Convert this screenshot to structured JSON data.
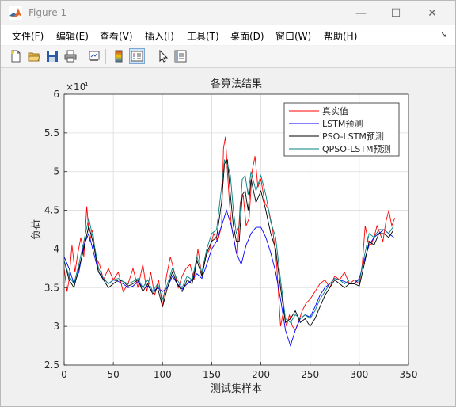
{
  "window": {
    "title": "Figure 1"
  },
  "window_controls": {
    "minimize": "—",
    "maximize": "☐",
    "close": "✕"
  },
  "menu": [
    "文件(F)",
    "编辑(E)",
    "查看(V)",
    "插入(I)",
    "工具(T)",
    "桌面(D)",
    "窗口(W)",
    "帮助(H)"
  ],
  "toolbar": {
    "icons": [
      "new-figure-icon",
      "open-file-icon",
      "save-icon",
      "print-icon",
      "link-icon",
      "colorbar-icon",
      "legend-icon",
      "pointer-icon",
      "property-editor-icon"
    ]
  },
  "colors": {
    "true": "#ff0000",
    "lstm": "#0000ff",
    "pso": "#000000",
    "qpso": "#008080",
    "grid": "#dcdcdc"
  },
  "chart_data": {
    "type": "line",
    "title": "各算法结果",
    "xlabel": "测试集样本",
    "ylabel": "负荷",
    "y_exponent_label": "×10",
    "y_exponent_power": "4",
    "xlim": [
      0,
      350
    ],
    "ylim": [
      2.5,
      6
    ],
    "xticks": [
      0,
      50,
      100,
      150,
      200,
      250,
      300,
      350
    ],
    "yticks": [
      2.5,
      3,
      3.5,
      4,
      4.5,
      5,
      5.5,
      6
    ],
    "ytick_labels": [
      "2.5",
      "3",
      "3.5",
      "4",
      "4.5",
      "5",
      "5.5",
      "6"
    ],
    "grid": true,
    "legend_position": "top-right",
    "series": [
      {
        "name": "真实值",
        "x": [
          0,
          3,
          5,
          8,
          11,
          14,
          17,
          20,
          23,
          26,
          29,
          32,
          36,
          40,
          45,
          50,
          55,
          60,
          65,
          70,
          75,
          80,
          84,
          88,
          92,
          96,
          100,
          104,
          108,
          112,
          116,
          120,
          124,
          128,
          132,
          136,
          140,
          144,
          148,
          152,
          156,
          160,
          162,
          164,
          166,
          168,
          170,
          173,
          176,
          179,
          182,
          185,
          188,
          191,
          194,
          197,
          200,
          204,
          208,
          212,
          216,
          220,
          223,
          226,
          229,
          232,
          235,
          238,
          242,
          246,
          250,
          255,
          260,
          265,
          270,
          275,
          280,
          285,
          290,
          295,
          300,
          303,
          306,
          309,
          312,
          315,
          318,
          321,
          324,
          327,
          330,
          333,
          336
        ],
        "values": [
          3.75,
          3.45,
          3.6,
          4.05,
          3.7,
          3.95,
          4.15,
          3.9,
          4.55,
          4.1,
          4.25,
          3.9,
          3.8,
          3.6,
          3.75,
          3.6,
          3.7,
          3.45,
          3.55,
          3.75,
          3.5,
          3.8,
          3.45,
          3.7,
          3.4,
          3.6,
          3.25,
          3.65,
          3.9,
          3.7,
          3.5,
          3.65,
          3.75,
          3.8,
          3.6,
          4.0,
          3.65,
          3.9,
          4.0,
          4.2,
          4.1,
          4.3,
          5.3,
          5.45,
          5.0,
          4.6,
          4.3,
          4.1,
          3.9,
          4.6,
          4.7,
          4.3,
          4.4,
          5.0,
          5.2,
          4.8,
          4.9,
          4.6,
          4.5,
          4.25,
          3.8,
          3.0,
          3.2,
          3.0,
          3.15,
          3.0,
          2.95,
          3.05,
          3.2,
          3.3,
          3.35,
          3.45,
          3.55,
          3.6,
          3.5,
          3.65,
          3.6,
          3.7,
          3.55,
          3.6,
          3.55,
          3.8,
          4.3,
          4.1,
          4.05,
          4.15,
          4.3,
          4.2,
          4.1,
          4.35,
          4.5,
          4.3,
          4.4
        ]
      },
      {
        "name": "LSTM预测",
        "x": [
          0,
          5,
          10,
          15,
          20,
          25,
          30,
          35,
          40,
          45,
          50,
          55,
          60,
          65,
          70,
          75,
          80,
          85,
          90,
          95,
          100,
          105,
          110,
          115,
          120,
          125,
          130,
          135,
          140,
          145,
          150,
          155,
          160,
          165,
          170,
          175,
          180,
          185,
          190,
          195,
          200,
          205,
          210,
          215,
          220,
          225,
          230,
          235,
          240,
          245,
          250,
          255,
          260,
          265,
          270,
          275,
          280,
          285,
          290,
          295,
          300,
          305,
          310,
          315,
          320,
          325,
          330,
          335
        ],
        "values": [
          3.9,
          3.75,
          3.55,
          3.7,
          4.05,
          4.2,
          3.95,
          3.7,
          3.62,
          3.55,
          3.6,
          3.58,
          3.55,
          3.5,
          3.52,
          3.58,
          3.5,
          3.52,
          3.45,
          3.5,
          3.45,
          3.5,
          3.65,
          3.55,
          3.48,
          3.55,
          3.6,
          3.68,
          3.62,
          3.8,
          4.0,
          4.1,
          4.3,
          4.5,
          4.3,
          3.95,
          3.8,
          4.05,
          4.2,
          4.28,
          4.28,
          4.15,
          3.95,
          3.7,
          3.35,
          2.95,
          2.75,
          2.95,
          3.1,
          3.15,
          3.12,
          3.25,
          3.4,
          3.5,
          3.55,
          3.62,
          3.6,
          3.58,
          3.55,
          3.55,
          3.62,
          3.85,
          4.05,
          4.15,
          4.2,
          4.25,
          4.2,
          4.15
        ]
      },
      {
        "name": "PSO-LSTM预测",
        "x": [
          0,
          5,
          10,
          15,
          20,
          25,
          30,
          35,
          40,
          45,
          50,
          55,
          60,
          65,
          70,
          75,
          80,
          85,
          90,
          95,
          100,
          105,
          110,
          115,
          120,
          125,
          130,
          135,
          140,
          145,
          150,
          155,
          160,
          163,
          166,
          169,
          172,
          175,
          178,
          181,
          184,
          187,
          190,
          195,
          200,
          205,
          210,
          215,
          220,
          225,
          230,
          235,
          240,
          245,
          250,
          255,
          260,
          265,
          270,
          275,
          280,
          285,
          290,
          295,
          300,
          305,
          310,
          315,
          320,
          325,
          330,
          335
        ],
        "values": [
          3.85,
          3.6,
          3.5,
          3.75,
          4.0,
          4.3,
          4.05,
          3.7,
          3.6,
          3.5,
          3.55,
          3.6,
          3.58,
          3.52,
          3.55,
          3.6,
          3.45,
          3.55,
          3.42,
          3.5,
          3.25,
          3.5,
          3.7,
          3.55,
          3.45,
          3.6,
          3.55,
          3.85,
          3.65,
          3.95,
          4.1,
          4.15,
          4.6,
          5.1,
          5.15,
          4.7,
          4.3,
          4.1,
          4.1,
          4.7,
          4.75,
          4.5,
          4.9,
          4.6,
          4.75,
          4.5,
          4.2,
          4.0,
          3.5,
          3.05,
          3.1,
          3.2,
          3.05,
          3.1,
          3.0,
          3.1,
          3.25,
          3.4,
          3.5,
          3.6,
          3.55,
          3.5,
          3.55,
          3.55,
          3.52,
          3.8,
          4.1,
          4.05,
          4.2,
          4.2,
          4.15,
          4.25
        ]
      },
      {
        "name": "QPSO-LSTM预测",
        "x": [
          0,
          5,
          10,
          15,
          20,
          25,
          30,
          35,
          40,
          45,
          50,
          55,
          60,
          65,
          70,
          75,
          80,
          85,
          90,
          95,
          100,
          105,
          110,
          115,
          120,
          125,
          130,
          135,
          140,
          145,
          150,
          155,
          160,
          163,
          166,
          169,
          172,
          175,
          178,
          181,
          184,
          187,
          190,
          195,
          200,
          205,
          210,
          215,
          220,
          225,
          230,
          235,
          240,
          245,
          250,
          255,
          260,
          265,
          270,
          275,
          280,
          285,
          290,
          295,
          300,
          305,
          310,
          315,
          320,
          325,
          330,
          335
        ],
        "values": [
          3.85,
          3.65,
          3.55,
          3.8,
          4.1,
          4.4,
          4.1,
          3.75,
          3.62,
          3.55,
          3.6,
          3.62,
          3.58,
          3.55,
          3.58,
          3.62,
          3.5,
          3.6,
          3.45,
          3.55,
          3.35,
          3.55,
          3.75,
          3.6,
          3.5,
          3.65,
          3.6,
          3.9,
          3.7,
          4.0,
          4.2,
          4.25,
          4.8,
          5.15,
          5.1,
          4.95,
          4.5,
          4.2,
          4.3,
          4.9,
          4.95,
          4.7,
          5.0,
          4.75,
          4.95,
          4.7,
          4.35,
          4.15,
          3.6,
          3.1,
          3.05,
          3.15,
          3.1,
          3.15,
          3.1,
          3.2,
          3.35,
          3.45,
          3.55,
          3.62,
          3.6,
          3.55,
          3.6,
          3.6,
          3.58,
          3.9,
          4.2,
          4.15,
          4.25,
          4.25,
          4.2,
          4.3
        ]
      }
    ]
  }
}
